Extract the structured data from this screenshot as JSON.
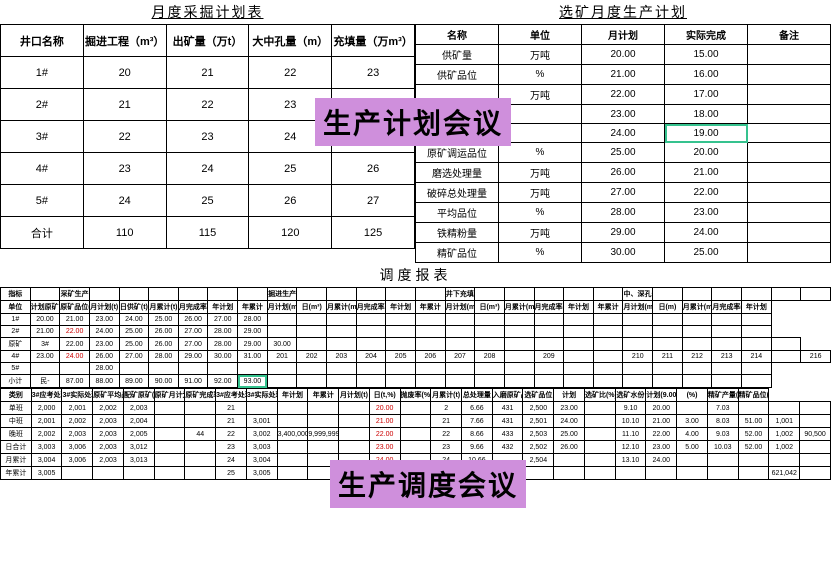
{
  "leftTable": {
    "title": "月度采掘计划表",
    "headers": [
      "井口名称",
      "掘进工程（m³）",
      "出矿量（万t）",
      "大中孔量（m）",
      "充填量（万m³）"
    ],
    "rows": [
      [
        "1#",
        "20",
        "21",
        "22",
        "23"
      ],
      [
        "2#",
        "21",
        "22",
        "23",
        ""
      ],
      [
        "3#",
        "22",
        "23",
        "24",
        ""
      ],
      [
        "4#",
        "23",
        "24",
        "25",
        "26"
      ],
      [
        "5#",
        "24",
        "25",
        "26",
        "27"
      ],
      [
        "合计",
        "110",
        "115",
        "120",
        "125"
      ]
    ]
  },
  "rightTable": {
    "title": "选矿月度生产计划",
    "headers": [
      "名称",
      "单位",
      "月计划",
      "实际完成",
      "备注"
    ],
    "rows": [
      [
        "供矿量",
        "万吨",
        "20.00",
        "15.00",
        ""
      ],
      [
        "供矿品位",
        "%",
        "21.00",
        "16.00",
        ""
      ],
      [
        "",
        "万吨",
        "22.00",
        "17.00",
        ""
      ],
      [
        "",
        "",
        "23.00",
        "18.00",
        ""
      ],
      [
        "",
        "",
        "24.00",
        "19.00",
        ""
      ],
      [
        "原矿调运品位",
        "%",
        "25.00",
        "20.00",
        ""
      ],
      [
        "磨选处理量",
        "万吨",
        "26.00",
        "21.00",
        ""
      ],
      [
        "破碎总处理量",
        "万吨",
        "27.00",
        "22.00",
        ""
      ],
      [
        "平均品位",
        "%",
        "28.00",
        "23.00",
        ""
      ],
      [
        "铁精粉量",
        "万吨",
        "29.00",
        "24.00",
        ""
      ],
      [
        "精矿品位",
        "%",
        "30.00",
        "25.00",
        ""
      ]
    ],
    "greenCell": [
      4,
      3
    ]
  },
  "overlay1": "生产计划会议",
  "overlay2": "生产调度会议",
  "dispatch": {
    "title": "调度报表",
    "group1": {
      "headers1": [
        "指标",
        "",
        "采矿生产",
        "",
        "",
        "",
        "",
        "",
        "",
        "掘进生产",
        "",
        "",
        "",
        "",
        "",
        "井下充填",
        "",
        "",
        "",
        "",
        "",
        "中、深孔普爆",
        "",
        "",
        "",
        "",
        "",
        ""
      ],
      "headers2": [
        "单位",
        "计划原矿品位(%)",
        "原矿品位(%)",
        "月计划(t)",
        "日供矿(t)",
        "月累计(t)",
        "月完成率(%)",
        "年计划",
        "年累计",
        "月计划(m³)",
        "日(m³)",
        "月累计(m³)",
        "月完成率(%)",
        "年计划",
        "年累计",
        "月计划(m³)",
        "日(m³)",
        "月累计(m³)",
        "月完成率(%)",
        "年计划",
        "年累计",
        "月计划(m)",
        "日(m)",
        "月累计(m)",
        "月完成率(%)",
        "年计划"
      ],
      "rows": [
        [
          "1#",
          "20.00",
          "21.00",
          "23.00",
          "24.00",
          "25.00",
          "26.00",
          "27.00",
          "28.00",
          "",
          "",
          "",
          "",
          "",
          "",
          "",
          "",
          "",
          "",
          "",
          "",
          "",
          "",
          "",
          "",
          ""
        ],
        [
          "2#",
          "21.00",
          "22.00",
          "24.00",
          "25.00",
          "26.00",
          "27.00",
          "28.00",
          "29.00",
          "",
          "",
          "",
          "",
          "",
          "",
          "",
          "",
          "",
          "",
          "",
          "",
          "",
          "",
          "",
          "",
          ""
        ],
        [
          "原矿",
          "3#",
          "22.00",
          "23.00",
          "25.00",
          "26.00",
          "27.00",
          "28.00",
          "29.00",
          "30.00",
          "",
          "",
          "",
          "",
          "",
          "",
          "",
          "",
          "",
          "",
          "",
          "",
          "",
          "",
          "",
          "",
          ""
        ],
        [
          "4#",
          "23.00",
          "24.00",
          "26.00",
          "27.00",
          "28.00",
          "29.00",
          "30.00",
          "31.00",
          "201",
          "202",
          "203",
          "204",
          "205",
          "206",
          "207",
          "208",
          "",
          "209",
          "",
          "",
          "210",
          "211",
          "212",
          "213",
          "214",
          "",
          "216"
        ],
        [
          "5#",
          "",
          "",
          "28.00",
          "",
          "",
          "",
          "",
          "",
          "",
          "",
          "",
          "",
          "",
          "",
          "",
          "",
          "",
          "",
          "",
          "",
          "",
          "",
          "",
          "",
          ""
        ]
      ],
      "subtotal": [
        "小计",
        "民-",
        "87.00",
        "88.00",
        "89.00",
        "90.00",
        "91.00",
        "92.00",
        "93.00"
      ],
      "redCells": [
        [
          1,
          2
        ],
        [
          3,
          2
        ]
      ]
    },
    "group2": {
      "leftHeaders": [
        "类别",
        "3#应考处理量(t)",
        "3#实际处理量(t)",
        "原矿平均品位(%)",
        "配矿原矿(t)",
        "原矿月计划(t)",
        "原矿完成率(%)"
      ],
      "rightHeaders": [
        "3#应考处理量(t)",
        "3#实际处理量(t)",
        "年计划",
        "年累计",
        "月计划(t)",
        "日(t,%)",
        "抛废率(%)",
        "月累计(t)",
        "总处理量",
        "入磨原矿品位(%)",
        "选矿品位",
        "计划",
        "选矿比(%)",
        "选矿水份",
        "计划(9.00)",
        "(%)",
        "精矿产量(t)",
        "精矿品位(%)"
      ],
      "rows": [
        [
          "单班",
          "2,000",
          "2,001",
          "2,002",
          "2,003",
          "",
          "",
          "21",
          "",
          "",
          "",
          "",
          "20.00",
          "",
          "2",
          "6.66",
          "431",
          "2,500",
          "23.00",
          "",
          "9.10",
          "20.00",
          "",
          "7.03",
          "",
          "",
          ""
        ],
        [
          "中班",
          "2,001",
          "2,002",
          "2,003",
          "2,004",
          "",
          "",
          "21",
          "3,001",
          "",
          "",
          "",
          "21.00",
          "",
          "21",
          "7.66",
          "431",
          "2,501",
          "24.00",
          "",
          "10.10",
          "21.00",
          "3.00",
          "8.03",
          "51.00",
          "1,001",
          ""
        ],
        [
          "晚班",
          "2,002",
          "2,003",
          "2,003",
          "2,005",
          "",
          "44",
          "22",
          "3,002",
          "3,400,000",
          "9,999,999",
          "",
          "22.00",
          "",
          "22",
          "8.66",
          "433",
          "2,503",
          "25.00",
          "",
          "11.10",
          "22.00",
          "4.00",
          "9.03",
          "52.00",
          "1,002",
          "90,500"
        ],
        [
          "日合计",
          "3,003",
          "3,006",
          "2,003",
          "3,012",
          "",
          "",
          "23",
          "3,003",
          "",
          "",
          "",
          "23.00",
          "",
          "23",
          "9.66",
          "432",
          "2,502",
          "26.00",
          "",
          "12.10",
          "23.00",
          "5.00",
          "10.03",
          "52.00",
          "1,002",
          ""
        ],
        [
          "月累计",
          "3,004",
          "3,006",
          "2,003",
          "3,013",
          "",
          "",
          "24",
          "3,004",
          "",
          "",
          "",
          "24.00",
          "",
          "24",
          "10.66",
          "",
          "2,504",
          "",
          "",
          "13.10",
          "24.00",
          "",
          "",
          "",
          "",
          ""
        ],
        [
          "年累计",
          "3,005",
          "",
          "",
          "",
          "",
          "",
          "25",
          "3,005",
          "",
          "",
          "",
          "",
          "",
          "",
          "",
          "",
          "",
          "",
          "",
          "",
          "",
          "",
          "",
          "",
          "621,042",
          ""
        ]
      ],
      "redCol": 12
    }
  },
  "colors": {
    "overlayBg": "#cf8fdc",
    "greenBorder": "#35c28e"
  }
}
